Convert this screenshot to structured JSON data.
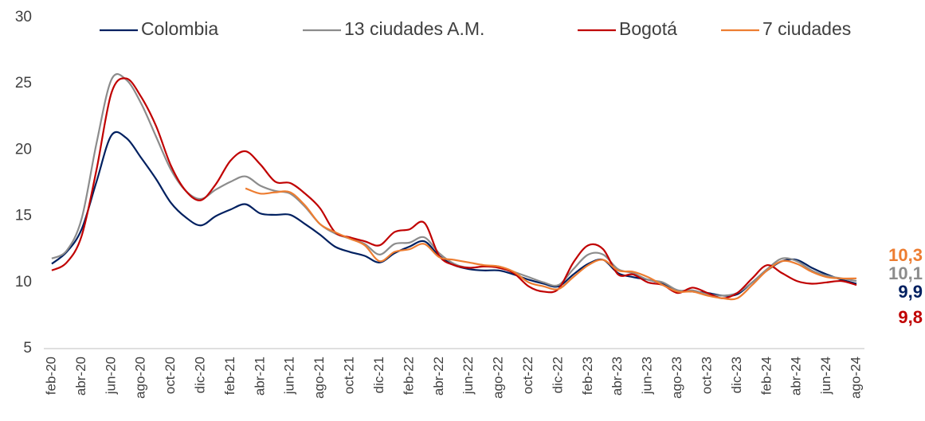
{
  "chart_data": {
    "type": "line",
    "categories": [
      "feb-20",
      null,
      "abr-20",
      null,
      "jun-20",
      null,
      "ago-20",
      null,
      "oct-20",
      null,
      "dic-20",
      null,
      "feb-21",
      null,
      "abr-21",
      null,
      "jun-21",
      null,
      "ago-21",
      null,
      "oct-21",
      null,
      "dic-21",
      null,
      "feb-22",
      null,
      "abr-22",
      null,
      "jun-22",
      null,
      "ago-22",
      null,
      "oct-22",
      null,
      "dic-22",
      null,
      "feb-23",
      null,
      "abr-23",
      null,
      "jun-23",
      null,
      "ago-23",
      null,
      "oct-23",
      null,
      "dic-23",
      null,
      "feb-24",
      null,
      "abr-24",
      null,
      "jun-24",
      null,
      "ago-24"
    ],
    "series": [
      {
        "name": "Colombia",
        "color": "#002060",
        "end_label": "9,9",
        "values": [
          11.4,
          12.3,
          14.0,
          17.6,
          21.1,
          20.9,
          19.4,
          17.8,
          16.0,
          14.9,
          14.3,
          15.0,
          15.5,
          15.9,
          15.2,
          15.1,
          15.1,
          14.4,
          13.6,
          12.7,
          12.3,
          12.0,
          11.5,
          12.2,
          12.7,
          13.1,
          12.0,
          11.3,
          11.0,
          10.9,
          10.9,
          10.6,
          10.2,
          9.9,
          9.7,
          10.6,
          11.4,
          11.7,
          10.7,
          10.4,
          10.2,
          9.9,
          9.4,
          9.3,
          9.2,
          9.0,
          9.1,
          10.0,
          10.9,
          11.6,
          11.7,
          11.1,
          10.6,
          10.2,
          9.9
        ]
      },
      {
        "name": "13 ciudades A.M.",
        "color": "#8c8c8c",
        "end_label": "10,1",
        "values": [
          11.8,
          12.4,
          14.8,
          20.5,
          25.3,
          25.3,
          23.5,
          21.0,
          18.5,
          16.9,
          16.3,
          17.0,
          17.6,
          18.0,
          17.3,
          16.9,
          16.7,
          15.7,
          14.4,
          13.7,
          13.3,
          12.9,
          12.1,
          12.9,
          13.0,
          13.4,
          12.2,
          11.4,
          11.1,
          11.2,
          11.2,
          10.8,
          10.4,
          10.0,
          9.8,
          11.0,
          12.1,
          12.1,
          11.0,
          10.7,
          10.2,
          10.0,
          9.4,
          9.4,
          9.1,
          9.0,
          9.2,
          10.0,
          11.0,
          11.8,
          11.6,
          10.9,
          10.5,
          10.3,
          10.1
        ]
      },
      {
        "name": "Bogotá",
        "color": "#c00000",
        "end_label": "9,8",
        "values": [
          10.9,
          11.5,
          13.5,
          18.5,
          24.3,
          25.4,
          24.0,
          21.8,
          18.8,
          16.9,
          16.2,
          17.4,
          19.2,
          19.9,
          18.9,
          17.6,
          17.5,
          16.7,
          15.6,
          13.8,
          13.4,
          13.1,
          12.8,
          13.8,
          14.0,
          14.5,
          12.0,
          11.3,
          11.1,
          11.2,
          11.1,
          10.7,
          9.7,
          9.3,
          9.5,
          11.5,
          12.8,
          12.5,
          10.6,
          10.6,
          10.0,
          9.8,
          9.2,
          9.6,
          9.2,
          8.8,
          9.2,
          10.3,
          11.3,
          10.7,
          10.1,
          9.9,
          10.0,
          10.1,
          9.8
        ]
      },
      {
        "name": "7 ciudades",
        "color": "#ed7d31",
        "end_label": "10,3",
        "values": [
          null,
          null,
          null,
          null,
          null,
          null,
          null,
          null,
          null,
          null,
          null,
          null,
          null,
          17.1,
          16.7,
          16.8,
          16.8,
          15.8,
          14.4,
          13.8,
          13.3,
          12.8,
          11.6,
          12.3,
          12.5,
          12.9,
          11.9,
          11.7,
          11.5,
          11.3,
          11.2,
          10.8,
          10.0,
          9.7,
          9.5,
          10.4,
          11.3,
          11.7,
          10.9,
          10.8,
          10.4,
          9.8,
          9.3,
          9.3,
          9.0,
          8.8,
          8.8,
          9.8,
          10.9,
          11.6,
          11.4,
          10.8,
          10.4,
          10.3,
          10.3
        ]
      }
    ],
    "ylim": [
      5,
      30
    ],
    "yticks": [
      5,
      10,
      15,
      20,
      25,
      30
    ],
    "grid": false
  }
}
